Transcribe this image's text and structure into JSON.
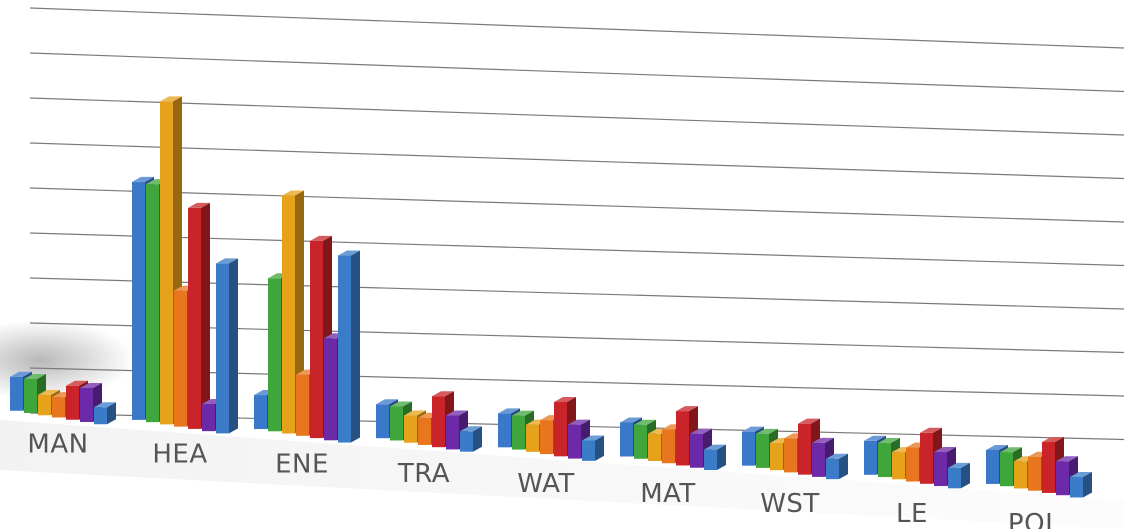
{
  "chart_data": {
    "type": "bar",
    "style": "3d-perspective-clustered",
    "categories": [
      "MAN",
      "HEA",
      "ENE",
      "TRA",
      "WAT",
      "MAT",
      "WST",
      "LE",
      "POL"
    ],
    "series": [
      {
        "color": "#3a78c9",
        "values": [
          1.0,
          7.0,
          1.0,
          1.0,
          1.0,
          1.0,
          1.0,
          1.0,
          1.0
        ]
      },
      {
        "color": "#3fa63b",
        "values": [
          1.0,
          7.0,
          4.5,
          1.0,
          1.0,
          1.0,
          1.0,
          1.0,
          1.0
        ]
      },
      {
        "color": "#e6a21a",
        "values": [
          0.6,
          9.5,
          7.0,
          0.8,
          0.8,
          0.8,
          0.8,
          0.8,
          0.8
        ]
      },
      {
        "color": "#e8761e",
        "values": [
          0.6,
          4.0,
          1.8,
          0.8,
          1.0,
          1.0,
          1.0,
          1.0,
          1.0
        ]
      },
      {
        "color": "#c8242a",
        "values": [
          1.0,
          6.5,
          5.8,
          1.5,
          1.6,
          1.6,
          1.5,
          1.5,
          1.5
        ]
      },
      {
        "color": "#6d2aa8",
        "values": [
          1.0,
          0.8,
          3.0,
          1.0,
          1.0,
          1.0,
          1.0,
          1.0,
          1.0
        ]
      },
      {
        "color": "#3a7cc8",
        "values": [
          0.5,
          5.0,
          5.5,
          0.6,
          0.6,
          0.6,
          0.6,
          0.6,
          0.6
        ]
      }
    ],
    "ylim": [
      0,
      10
    ],
    "grid": true,
    "legend": "none"
  }
}
